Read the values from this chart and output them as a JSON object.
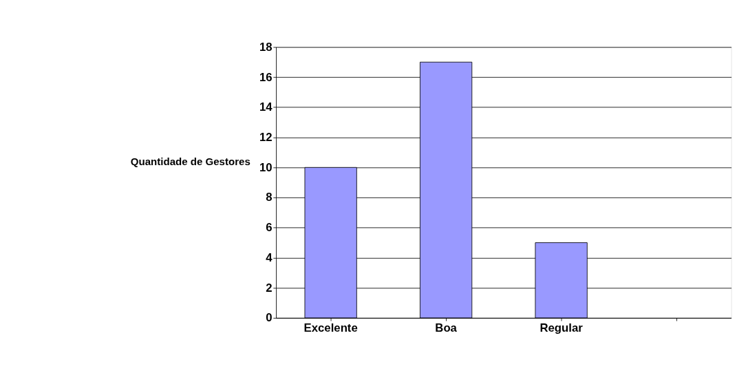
{
  "chart_data": {
    "type": "bar",
    "ylabel": "Quantidade de Gestores",
    "categories": [
      "Excelente",
      "Boa",
      "Regular",
      null
    ],
    "values": [
      10,
      17,
      5,
      null
    ],
    "color": "#9999ff",
    "ylim": [
      0,
      18
    ],
    "yticks": [
      0,
      2,
      4,
      6,
      8,
      10,
      12,
      14,
      16,
      18
    ],
    "grid": "y"
  }
}
